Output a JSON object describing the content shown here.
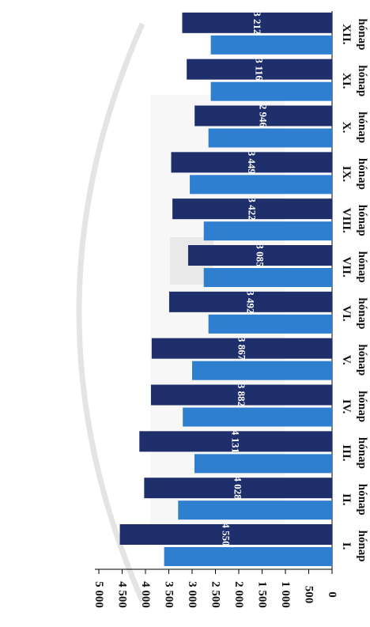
{
  "chart_data": {
    "type": "bar",
    "orientation": "horizontal",
    "rotation": "rotated 90° clockwise (month axis on the right, value axis at the bottom)",
    "categories": [
      "I. hónap",
      "II. hónap",
      "III. hónap",
      "IV. hónap",
      "V. hónap",
      "VI. hónap",
      "VII. hónap",
      "VIII. hónap",
      "IX. hónap",
      "X. hónap",
      "XI. hónap",
      "XII. hónap"
    ],
    "month_numerals": [
      "I.",
      "II.",
      "III.",
      "IV.",
      "V.",
      "VI.",
      "VII.",
      "VIII.",
      "IX.",
      "X.",
      "XI.",
      "XII."
    ],
    "month_word": "hónap",
    "series": [
      {
        "color": "#1f2f6b",
        "values": [
          4550,
          4028,
          4131,
          3882,
          3867,
          3492,
          3085,
          3422,
          3449,
          2946,
          3116,
          3212
        ],
        "labels": [
          "4 550",
          "4 028",
          "4 131",
          "3 882",
          "3 867",
          "3 492",
          "3 085",
          "3 422",
          "3 449",
          "2 946",
          "3 116",
          "3 212"
        ]
      },
      {
        "color": "#2f7fd0",
        "values": [
          3600,
          3300,
          2950,
          3200,
          3000,
          2650,
          2750,
          2750,
          3050,
          2650,
          2600,
          2600
        ]
      }
    ],
    "value_axis": {
      "ticks": [
        0,
        500,
        1000,
        1500,
        2000,
        2500,
        3000,
        3500,
        4000,
        4500,
        5000
      ],
      "tick_labels": [
        "0",
        "500",
        "1 000",
        "1 500",
        "2 000",
        "2 500",
        "3 000",
        "3 500",
        "4 000",
        "4 500",
        "5 000"
      ],
      "range": [
        0,
        5000
      ]
    },
    "grid": false,
    "legend": "none"
  }
}
